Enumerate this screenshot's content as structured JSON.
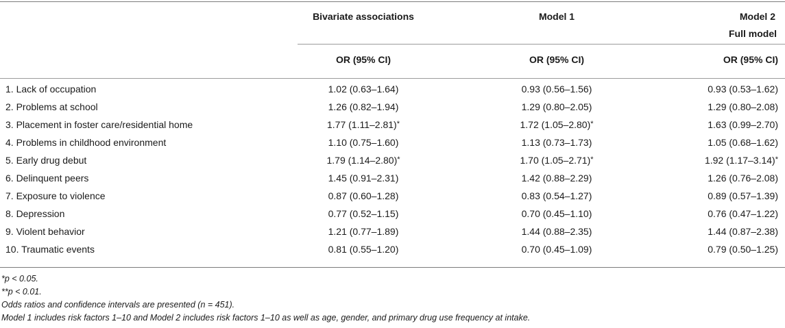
{
  "header": {
    "col1": "Bivariate associations",
    "col2": "Model 1",
    "col3_line1": "Model 2",
    "col3_line2": "Full model",
    "sub1": "OR (95% CI)",
    "sub2": "OR (95% CI)",
    "sub3": "OR (95% CI)"
  },
  "rows": [
    {
      "label": "1. Lack of occupation",
      "v1": "1.02 (0.63–1.64)",
      "s1": "",
      "v2": "0.93 (0.56–1.56)",
      "s2": "",
      "v3": "0.93 (0.53–1.62)",
      "s3": ""
    },
    {
      "label": "2. Problems at school",
      "v1": "1.26 (0.82–1.94)",
      "s1": "",
      "v2": "1.29 (0.80–2.05)",
      "s2": "",
      "v3": "1.29 (0.80–2.08)",
      "s3": ""
    },
    {
      "label": "3. Placement in foster care/residential home",
      "v1": "1.77 (1.11–2.81)",
      "s1": "*",
      "v2": "1.72 (1.05–2.80)",
      "s2": "*",
      "v3": "1.63 (0.99–2.70)",
      "s3": ""
    },
    {
      "label": "4. Problems in childhood environment",
      "v1": "1.10 (0.75–1.60)",
      "s1": "",
      "v2": "1.13 (0.73–1.73)",
      "s2": "",
      "v3": "1.05 (0.68–1.62)",
      "s3": ""
    },
    {
      "label": "5. Early drug debut",
      "v1": "1.79 (1.14–2.80)",
      "s1": "*",
      "v2": "1.70 (1.05–2.71)",
      "s2": "*",
      "v3": "1.92 (1.17–3.14)",
      "s3": "*"
    },
    {
      "label": "6. Delinquent peers",
      "v1": "1.45 (0.91–2.31)",
      "s1": "",
      "v2": "1.42 (0.88–2.29)",
      "s2": "",
      "v3": "1.26 (0.76–2.08)",
      "s3": ""
    },
    {
      "label": "7. Exposure to violence",
      "v1": "0.87 (0.60–1.28)",
      "s1": "",
      "v2": "0.83 (0.54–1.27)",
      "s2": "",
      "v3": "0.89 (0.57–1.39)",
      "s3": ""
    },
    {
      "label": "8. Depression",
      "v1": "0.77 (0.52–1.15)",
      "s1": "",
      "v2": "0.70 (0.45–1.10)",
      "s2": "",
      "v3": "0.76 (0.47–1.22)",
      "s3": ""
    },
    {
      "label": "9. Violent behavior",
      "v1": "1.21 (0.77–1.89)",
      "s1": "",
      "v2": "1.44 (0.88–2.35)",
      "s2": "",
      "v3": "1.44 (0.87–2.38)",
      "s3": ""
    },
    {
      "label": "10. Traumatic events",
      "v1": "0.81 (0.55–1.20)",
      "s1": "",
      "v2": "0.70 (0.45–1.09)",
      "s2": "",
      "v3": "0.79 (0.50–1.25)",
      "s3": ""
    }
  ],
  "footnotes": {
    "p05": "*p < 0.05.",
    "p01": "**p < 0.01.",
    "odds": "Odds ratios and confidence intervals are presented (n = 451).",
    "models": "Model 1 includes risk factors 1–10 and Model 2 includes risk factors 1–10 as well as age, gender, and primary drug use frequency at intake."
  }
}
